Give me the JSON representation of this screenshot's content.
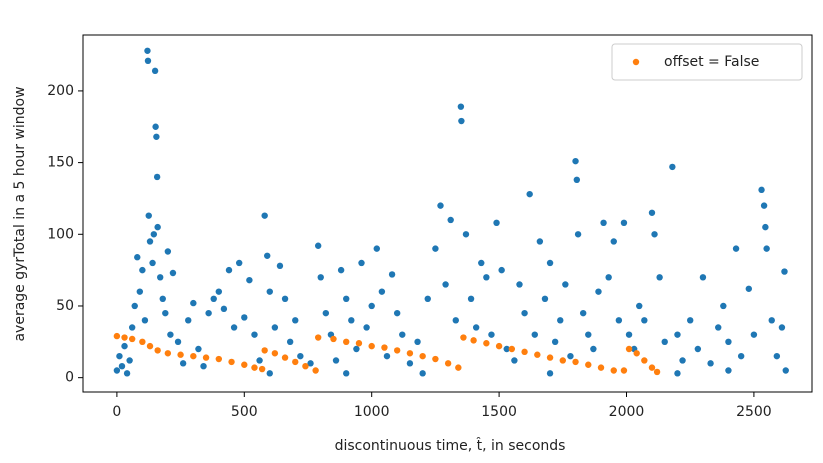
{
  "chart_data": {
    "type": "scatter",
    "xlabel": "discontinuous time, t̂, in seconds",
    "ylabel": "average gyrTotal in a 5 hour window",
    "xlim": [
      -133,
      2728
    ],
    "ylim": [
      -10,
      239
    ],
    "xticks": [
      0,
      500,
      1000,
      1500,
      2000,
      2500
    ],
    "yticks": [
      0,
      50,
      100,
      150,
      200
    ],
    "legend": "upper right",
    "series": [
      {
        "color": "#1f77b4",
        "x": [
          0,
          10,
          20,
          30,
          40,
          50,
          60,
          70,
          80,
          90,
          100,
          110,
          120,
          122,
          125,
          130,
          140,
          145,
          150,
          152,
          155,
          158,
          160,
          170,
          180,
          190,
          200,
          210,
          220,
          240,
          260,
          280,
          300,
          320,
          340,
          360,
          380,
          400,
          420,
          440,
          460,
          480,
          500,
          520,
          540,
          560,
          580,
          590,
          600,
          620,
          640,
          660,
          680,
          700,
          720,
          760,
          790,
          800,
          820,
          840,
          860,
          880,
          900,
          920,
          940,
          960,
          980,
          1000,
          1020,
          1040,
          1060,
          1080,
          1100,
          1120,
          1150,
          1180,
          1220,
          1250,
          1270,
          1290,
          1310,
          1330,
          1350,
          1352,
          1370,
          1390,
          1410,
          1430,
          1450,
          1470,
          1490,
          1510,
          1530,
          1560,
          1580,
          1600,
          1620,
          1640,
          1660,
          1680,
          1700,
          1720,
          1740,
          1760,
          1780,
          1800,
          1805,
          1810,
          1830,
          1850,
          1870,
          1890,
          1910,
          1930,
          1950,
          1970,
          1990,
          2010,
          2030,
          2050,
          2070,
          2100,
          2110,
          2130,
          2150,
          2180,
          2200,
          2220,
          2250,
          2280,
          2300,
          2330,
          2360,
          2380,
          2400,
          2430,
          2450,
          2480,
          2500,
          2530,
          2540,
          2545,
          2550,
          2570,
          2590,
          2610,
          2620,
          2625,
          600,
          900,
          1200,
          1700,
          2200,
          2400
        ],
        "values": [
          5,
          15,
          8,
          22,
          3,
          12,
          35,
          50,
          84,
          60,
          75,
          40,
          228,
          221,
          113,
          95,
          80,
          100,
          214,
          175,
          168,
          140,
          105,
          70,
          55,
          45,
          88,
          30,
          73,
          25,
          10,
          40,
          52,
          20,
          8,
          45,
          55,
          60,
          48,
          75,
          35,
          80,
          42,
          68,
          30,
          12,
          113,
          85,
          60,
          35,
          78,
          55,
          25,
          40,
          15,
          10,
          92,
          70,
          45,
          30,
          12,
          75,
          55,
          40,
          20,
          80,
          35,
          50,
          90,
          60,
          15,
          72,
          45,
          30,
          10,
          25,
          55,
          90,
          120,
          65,
          110,
          40,
          189,
          179,
          100,
          55,
          35,
          80,
          70,
          30,
          108,
          75,
          20,
          12,
          65,
          45,
          128,
          30,
          95,
          55,
          80,
          25,
          40,
          65,
          15,
          151,
          138,
          100,
          45,
          30,
          20,
          60,
          108,
          70,
          95,
          40,
          108,
          30,
          20,
          50,
          40,
          115,
          100,
          70,
          25,
          147,
          30,
          12,
          40,
          20,
          70,
          10,
          35,
          50,
          25,
          90,
          15,
          62,
          30,
          131,
          120,
          105,
          90,
          40,
          15,
          35,
          74,
          5,
          3,
          3,
          3,
          3,
          3,
          5
        ]
      },
      {
        "name": "offset = False",
        "color": "#ff7f0e",
        "x": [
          0,
          30,
          60,
          100,
          130,
          160,
          200,
          250,
          300,
          350,
          400,
          450,
          500,
          540,
          570,
          580,
          620,
          660,
          700,
          740,
          780,
          790,
          850,
          900,
          950,
          1000,
          1050,
          1100,
          1150,
          1200,
          1250,
          1300,
          1340,
          1360,
          1400,
          1450,
          1500,
          1550,
          1600,
          1650,
          1700,
          1750,
          1800,
          1850,
          1900,
          1950,
          1990,
          2010,
          2040,
          2070,
          2100,
          2120
        ],
        "values": [
          29,
          28,
          27,
          25,
          22,
          19,
          17,
          16,
          15,
          14,
          13,
          11,
          9,
          7,
          6,
          19,
          17,
          14,
          11,
          8,
          5,
          28,
          27,
          25,
          24,
          22,
          21,
          19,
          17,
          15,
          13,
          10,
          7,
          28,
          26,
          24,
          22,
          20,
          18,
          16,
          14,
          12,
          11,
          9,
          7,
          5,
          5,
          20,
          17,
          12,
          7,
          4
        ]
      }
    ]
  }
}
